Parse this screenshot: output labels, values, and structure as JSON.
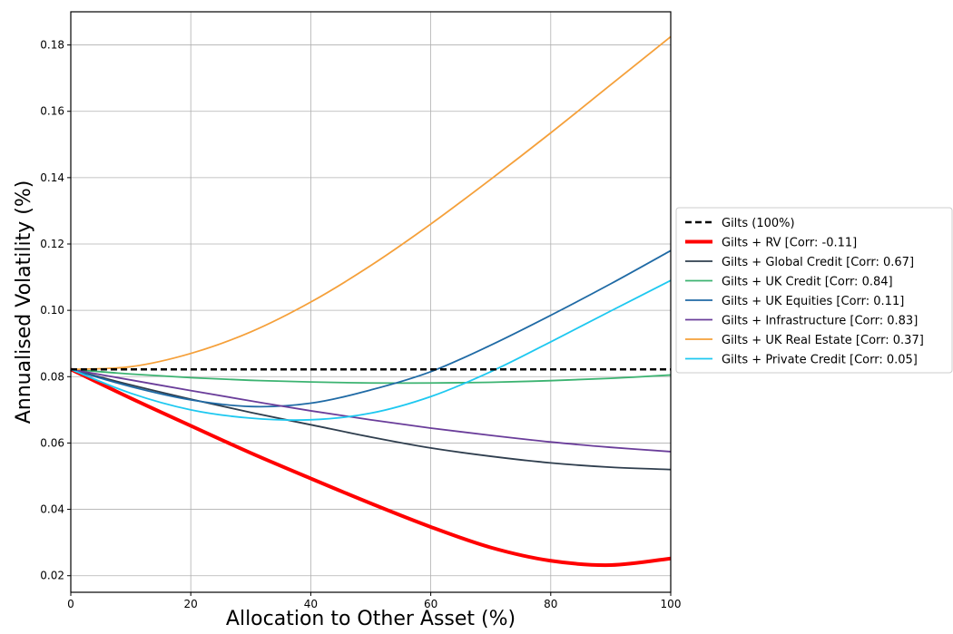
{
  "chart_data": {
    "type": "line",
    "title": "",
    "xlabel": "Allocation to Other Asset (%)",
    "ylabel": "Annualised Volatility (%)",
    "xlim": [
      0,
      100
    ],
    "ylim": [
      0.015,
      0.19
    ],
    "xticks": [
      0,
      20,
      40,
      60,
      80,
      100
    ],
    "xtick_labels": [
      "0",
      "20",
      "40",
      "60",
      "80",
      "100"
    ],
    "yticks": [
      0.02,
      0.04,
      0.06,
      0.08,
      0.1,
      0.12,
      0.14,
      0.16,
      0.18
    ],
    "ytick_labels": [
      "0.02",
      "0.04",
      "0.06",
      "0.08",
      "0.10",
      "0.12",
      "0.14",
      "0.16",
      "0.18"
    ],
    "grid": true,
    "legend_position": "right",
    "x": [
      0,
      10,
      20,
      30,
      40,
      50,
      60,
      70,
      80,
      90,
      100
    ],
    "series": [
      {
        "name": "Gilts (100%)",
        "color": "#000000",
        "dashed": true,
        "width": 2.5,
        "values": [
          0.0822,
          0.0822,
          0.0822,
          0.0822,
          0.0822,
          0.0822,
          0.0822,
          0.0822,
          0.0822,
          0.0822,
          0.0822
        ]
      },
      {
        "name": "Gilts + RV [Corr: -0.11]",
        "color": "#ff0000",
        "dashed": false,
        "width": 4,
        "values": [
          0.0822,
          0.0735,
          0.0652,
          0.057,
          0.0493,
          0.0418,
          0.0347,
          0.0285,
          0.0245,
          0.0232,
          0.0252
        ]
      },
      {
        "name": "Gilts + Global Credit [Corr: 0.67]",
        "color": "#2f3e4e",
        "dashed": false,
        "width": 1.8,
        "values": [
          0.0822,
          0.0775,
          0.0732,
          0.0692,
          0.0655,
          0.0618,
          0.0585,
          0.056,
          0.054,
          0.0527,
          0.052
        ]
      },
      {
        "name": "Gilts + UK Credit [Corr: 0.84]",
        "color": "#3cb371",
        "dashed": false,
        "width": 1.8,
        "values": [
          0.0822,
          0.0808,
          0.0797,
          0.0789,
          0.0784,
          0.0781,
          0.0781,
          0.0783,
          0.0788,
          0.0795,
          0.0805
        ]
      },
      {
        "name": "Gilts + UK Equities [Corr: 0.11]",
        "color": "#1f6aa5",
        "dashed": false,
        "width": 1.8,
        "values": [
          0.0822,
          0.077,
          0.073,
          0.071,
          0.072,
          0.076,
          0.0815,
          0.0895,
          0.0985,
          0.108,
          0.118
        ]
      },
      {
        "name": "Gilts + Infrastructure [Corr: 0.83]",
        "color": "#6a3d9a",
        "dashed": false,
        "width": 1.8,
        "values": [
          0.0822,
          0.079,
          0.0758,
          0.0727,
          0.0697,
          0.067,
          0.0645,
          0.0623,
          0.0603,
          0.0587,
          0.0574
        ]
      },
      {
        "name": "Gilts + UK Real Estate [Corr: 0.37]",
        "color": "#f5a03a",
        "dashed": false,
        "width": 1.8,
        "values": [
          0.0822,
          0.083,
          0.087,
          0.0935,
          0.1025,
          0.1135,
          0.126,
          0.1395,
          0.1535,
          0.168,
          0.1825
        ]
      },
      {
        "name": "Gilts + Private Credit [Corr: 0.05]",
        "color": "#1ec8f0",
        "dashed": false,
        "width": 1.8,
        "values": [
          0.0822,
          0.075,
          0.07,
          0.0675,
          0.067,
          0.069,
          0.074,
          0.0815,
          0.0905,
          0.0998,
          0.109
        ]
      }
    ]
  }
}
